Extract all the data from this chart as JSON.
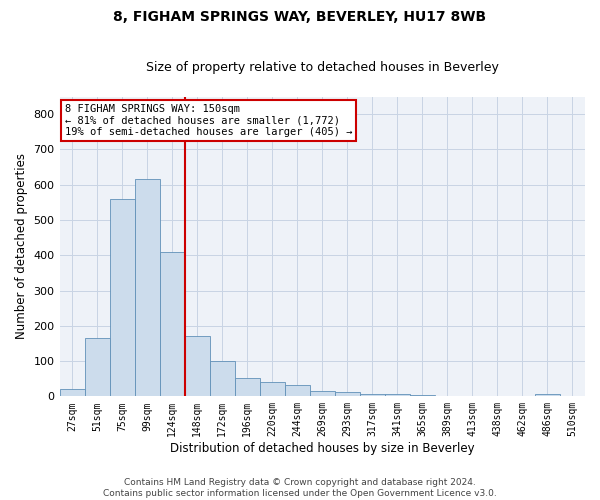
{
  "title": "8, FIGHAM SPRINGS WAY, BEVERLEY, HU17 8WB",
  "subtitle": "Size of property relative to detached houses in Beverley",
  "xlabel": "Distribution of detached houses by size in Beverley",
  "ylabel": "Number of detached properties",
  "footnote": "Contains HM Land Registry data © Crown copyright and database right 2024.\nContains public sector information licensed under the Open Government Licence v3.0.",
  "bar_categories": [
    "27sqm",
    "51sqm",
    "75sqm",
    "99sqm",
    "124sqm",
    "148sqm",
    "172sqm",
    "196sqm",
    "220sqm",
    "244sqm",
    "269sqm",
    "293sqm",
    "317sqm",
    "341sqm",
    "365sqm",
    "389sqm",
    "413sqm",
    "438sqm",
    "462sqm",
    "486sqm",
    "510sqm"
  ],
  "bar_values": [
    20,
    165,
    560,
    615,
    410,
    170,
    100,
    52,
    42,
    32,
    15,
    13,
    8,
    7,
    4,
    1,
    0,
    0,
    0,
    8,
    0
  ],
  "bar_color": "#ccdcec",
  "bar_edge_color": "#6090b8",
  "highlight_line_idx": 5,
  "highlight_line_color": "#cc0000",
  "annotation_box_text": "8 FIGHAM SPRINGS WAY: 150sqm\n← 81% of detached houses are smaller (1,772)\n19% of semi-detached houses are larger (405) →",
  "annotation_box_color": "#cc0000",
  "ylim": [
    0,
    850
  ],
  "yticks": [
    0,
    100,
    200,
    300,
    400,
    500,
    600,
    700,
    800
  ],
  "grid_color": "#c8d4e4",
  "bg_color": "#eef2f8",
  "title_fontsize": 10,
  "subtitle_fontsize": 9,
  "label_fontsize": 8.5,
  "footnote_fontsize": 6.5
}
